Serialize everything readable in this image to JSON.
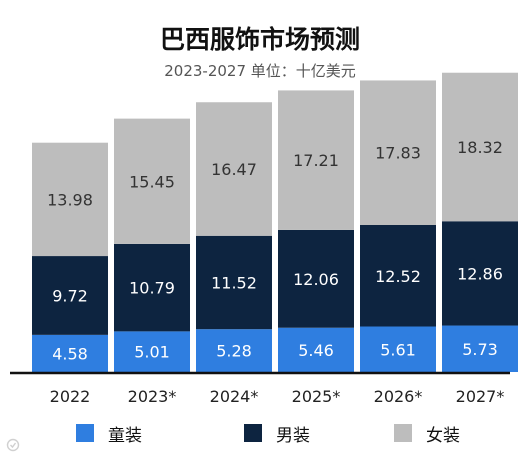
{
  "chart_data": {
    "type": "bar",
    "stacked": true,
    "title": "巴西服饰市场预测",
    "subtitle": "2023-2027 单位：十亿美元",
    "categories": [
      "2022",
      "2023*",
      "2024*",
      "2025*",
      "2026*",
      "2027*"
    ],
    "series": [
      {
        "name": "童装",
        "color": "#2f7ee0",
        "values": [
          4.58,
          5.01,
          5.28,
          5.46,
          5.61,
          5.73
        ]
      },
      {
        "name": "男装",
        "color": "#0d2440",
        "values": [
          9.72,
          10.79,
          11.52,
          12.06,
          12.52,
          12.86
        ]
      },
      {
        "name": "女装",
        "color": "#bdbdbd",
        "values": [
          13.98,
          15.45,
          16.47,
          17.21,
          17.83,
          18.32
        ]
      }
    ],
    "ylim": [
      0,
      37
    ],
    "grid": false,
    "legend_position": "bottom"
  }
}
